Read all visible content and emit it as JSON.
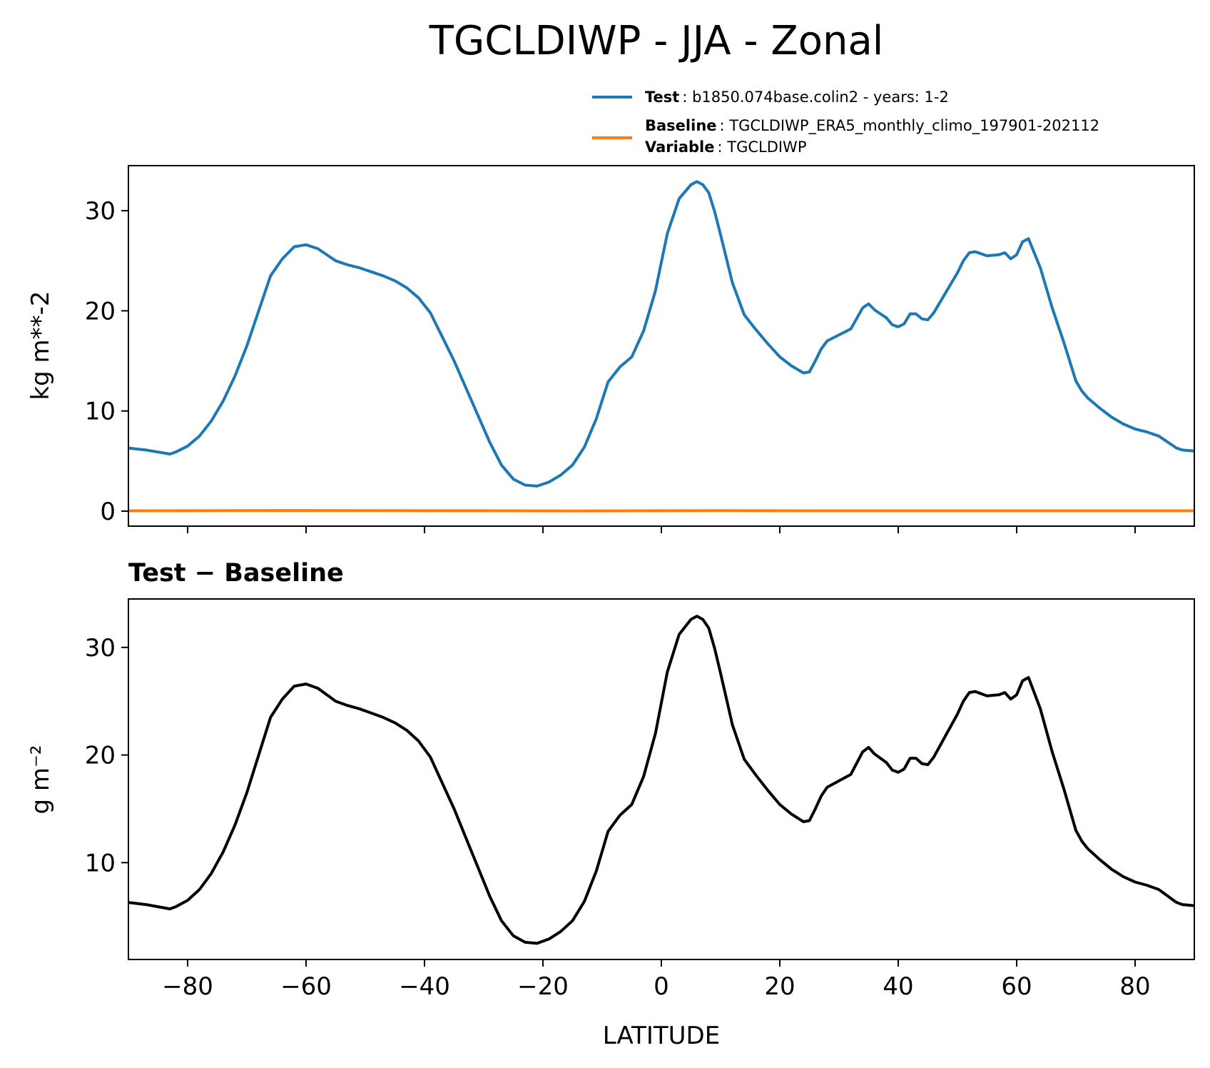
{
  "title": "TGCLDIWP - JJA - Zonal",
  "xlabel": "LATITUDE",
  "colors": {
    "test": "#1f77b4",
    "baseline": "#ff7f0e",
    "diff": "#000000"
  },
  "legend": {
    "test_key": "Test",
    "test_value": ": b1850.074base.colin2 - years: 1-2",
    "baseline_key": "Baseline",
    "baseline_value": ": TGCLDIWP_ERA5_monthly_climo_197901-202112",
    "variable_key": "Variable",
    "variable_value": ": TGCLDIWP"
  },
  "chart_data": [
    {
      "type": "line",
      "ylabel": "kg m**-2",
      "xlim": [
        -90,
        90
      ],
      "ylim": [
        -1.5,
        34.5
      ],
      "xticks": [
        -80,
        -60,
        -40,
        -20,
        0,
        20,
        40,
        60,
        80
      ],
      "xtick_labels_shown": false,
      "yticks": [
        0,
        10,
        20,
        30
      ],
      "ytick_labels": [
        "0",
        "10",
        "20",
        "30"
      ],
      "legend_position": "above-right",
      "series": [
        {
          "name": "Test",
          "x": [
            -90,
            -87,
            -85,
            -83,
            -82,
            -80,
            -78,
            -76,
            -74,
            -72,
            -70,
            -68,
            -66,
            -64,
            -62,
            -60,
            -58,
            -57,
            -55,
            -53,
            -51,
            -49,
            -47,
            -45,
            -43,
            -41,
            -39,
            -37,
            -35,
            -33,
            -31,
            -29,
            -27,
            -25,
            -23,
            -21,
            -19,
            -17,
            -15,
            -13,
            -11,
            -9,
            -7,
            -5,
            -3,
            -1,
            1,
            3,
            5,
            6,
            7,
            8,
            9,
            10,
            12,
            14,
            16,
            18,
            20,
            22,
            24,
            25,
            26,
            27,
            28,
            30,
            32,
            34,
            35,
            36,
            37,
            38,
            39,
            40,
            41,
            42,
            43,
            44,
            45,
            46,
            47,
            48,
            49,
            50,
            51,
            52,
            53,
            55,
            57,
            58,
            59,
            60,
            61,
            62,
            64,
            66,
            68,
            70,
            71,
            72,
            74,
            76,
            78,
            80,
            82,
            84,
            86,
            87,
            88,
            90
          ],
          "y": [
            6.3,
            6.1,
            5.9,
            5.7,
            5.9,
            6.5,
            7.5,
            9.0,
            11.0,
            13.5,
            16.5,
            20.0,
            23.5,
            25.2,
            26.4,
            26.6,
            26.2,
            25.8,
            25.0,
            24.6,
            24.3,
            23.9,
            23.5,
            23.0,
            22.3,
            21.3,
            19.8,
            17.4,
            15.0,
            12.3,
            9.6,
            6.9,
            4.6,
            3.2,
            2.6,
            2.5,
            2.9,
            3.6,
            4.6,
            6.4,
            9.2,
            12.9,
            14.4,
            15.4,
            18.0,
            22.0,
            27.7,
            31.2,
            32.6,
            32.9,
            32.6,
            31.8,
            29.9,
            27.6,
            22.8,
            19.6,
            18.1,
            16.7,
            15.4,
            14.5,
            13.8,
            13.9,
            15.0,
            16.2,
            17.0,
            17.6,
            18.2,
            20.3,
            20.7,
            20.1,
            19.7,
            19.3,
            18.6,
            18.4,
            18.7,
            19.7,
            19.7,
            19.2,
            19.1,
            19.8,
            20.8,
            21.8,
            22.8,
            23.8,
            25.0,
            25.8,
            25.9,
            25.5,
            25.6,
            25.8,
            25.2,
            25.6,
            26.9,
            27.2,
            24.3,
            20.3,
            16.8,
            13.0,
            12.0,
            11.3,
            10.3,
            9.4,
            8.7,
            8.2,
            7.9,
            7.5,
            6.7,
            6.3,
            6.1,
            6.0
          ]
        },
        {
          "name": "Baseline",
          "x": [
            -90,
            -60,
            -30,
            -15,
            0,
            10,
            30,
            60,
            90
          ],
          "y": [
            0.03,
            0.06,
            0.04,
            0.02,
            0.04,
            0.05,
            0.03,
            0.03,
            0.03
          ]
        }
      ]
    },
    {
      "type": "line",
      "title": "Test − Baseline",
      "ylabel": "g m⁻²",
      "xlabel": "LATITUDE",
      "xlim": [
        -90,
        90
      ],
      "ylim": [
        1.0,
        34.5
      ],
      "xticks": [
        -80,
        -60,
        -40,
        -20,
        0,
        20,
        40,
        60,
        80
      ],
      "xtick_labels": [
        "−80",
        "−60",
        "−40",
        "−20",
        "0",
        "20",
        "40",
        "60",
        "80"
      ],
      "yticks": [
        10,
        20,
        30
      ],
      "ytick_labels": [
        "10",
        "20",
        "30"
      ],
      "series": [
        {
          "x": [
            -90,
            -87,
            -85,
            -83,
            -82,
            -80,
            -78,
            -76,
            -74,
            -72,
            -70,
            -68,
            -66,
            -64,
            -62,
            -60,
            -58,
            -57,
            -55,
            -53,
            -51,
            -49,
            -47,
            -45,
            -43,
            -41,
            -39,
            -37,
            -35,
            -33,
            -31,
            -29,
            -27,
            -25,
            -23,
            -21,
            -19,
            -17,
            -15,
            -13,
            -11,
            -9,
            -7,
            -5,
            -3,
            -1,
            1,
            3,
            5,
            6,
            7,
            8,
            9,
            10,
            12,
            14,
            16,
            18,
            20,
            22,
            24,
            25,
            26,
            27,
            28,
            30,
            32,
            34,
            35,
            36,
            37,
            38,
            39,
            40,
            41,
            42,
            43,
            44,
            45,
            46,
            47,
            48,
            49,
            50,
            51,
            52,
            53,
            55,
            57,
            58,
            59,
            60,
            61,
            62,
            64,
            66,
            68,
            70,
            71,
            72,
            74,
            76,
            78,
            80,
            82,
            84,
            86,
            87,
            88,
            90
          ],
          "y": [
            6.3,
            6.1,
            5.9,
            5.7,
            5.9,
            6.5,
            7.5,
            9.0,
            11.0,
            13.5,
            16.5,
            20.0,
            23.5,
            25.2,
            26.4,
            26.6,
            26.2,
            25.8,
            25.0,
            24.6,
            24.3,
            23.9,
            23.5,
            23.0,
            22.3,
            21.3,
            19.8,
            17.4,
            15.0,
            12.3,
            9.6,
            6.9,
            4.6,
            3.2,
            2.6,
            2.5,
            2.9,
            3.6,
            4.6,
            6.4,
            9.2,
            12.9,
            14.4,
            15.4,
            18.0,
            22.0,
            27.7,
            31.2,
            32.6,
            32.9,
            32.6,
            31.8,
            29.9,
            27.6,
            22.8,
            19.6,
            18.1,
            16.7,
            15.4,
            14.5,
            13.8,
            13.9,
            15.0,
            16.2,
            17.0,
            17.6,
            18.2,
            20.3,
            20.7,
            20.1,
            19.7,
            19.3,
            18.6,
            18.4,
            18.7,
            19.7,
            19.7,
            19.2,
            19.1,
            19.8,
            20.8,
            21.8,
            22.8,
            23.8,
            25.0,
            25.8,
            25.9,
            25.5,
            25.6,
            25.8,
            25.2,
            25.6,
            26.9,
            27.2,
            24.3,
            20.3,
            16.8,
            13.0,
            12.0,
            11.3,
            10.3,
            9.4,
            8.7,
            8.2,
            7.9,
            7.5,
            6.7,
            6.3,
            6.1,
            6.0
          ]
        }
      ]
    }
  ]
}
